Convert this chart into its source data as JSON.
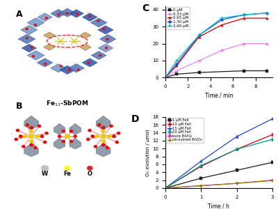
{
  "panel_C": {
    "xlabel": "Time / min",
    "xlim": [
      0,
      9.5
    ],
    "ylim": [
      0,
      42
    ],
    "series": [
      {
        "label": "0 μM",
        "color": "#1a1a1a",
        "marker": "s",
        "x": [
          0,
          1,
          3,
          7,
          9
        ],
        "y": [
          0,
          2,
          3,
          4,
          4
        ]
      },
      {
        "label": "0.33 μM",
        "color": "#ee82ee",
        "marker": "o",
        "x": [
          0,
          1,
          3,
          5,
          7,
          9
        ],
        "y": [
          0,
          4,
          10,
          16,
          20,
          20
        ]
      },
      {
        "label": "0.65 μM",
        "color": "#cc0000",
        "marker": "^",
        "x": [
          0,
          1,
          3,
          5,
          7,
          9
        ],
        "y": [
          0,
          7,
          24,
          31,
          35,
          35
        ]
      },
      {
        "label": "1.30 μM",
        "color": "#2244cc",
        "marker": "D",
        "x": [
          0,
          1,
          3,
          5,
          7,
          9
        ],
        "y": [
          0,
          8,
          25,
          34,
          37,
          38
        ]
      },
      {
        "label": "2.60 μM",
        "color": "#00bbcc",
        "marker": "v",
        "x": [
          0,
          1,
          3,
          5,
          7,
          9
        ],
        "y": [
          0,
          10,
          25,
          35,
          37,
          38
        ]
      }
    ],
    "yticks": [
      0,
      10,
      20,
      30,
      40
    ],
    "xticks": [
      0,
      2,
      4,
      6,
      8
    ]
  },
  "panel_D": {
    "xlabel": "Time / h",
    "ylabel": "O₂ evolution / μmol",
    "xlim": [
      0,
      3
    ],
    "ylim": [
      0,
      18
    ],
    "series": [
      {
        "label": "1 μM FeII",
        "color": "#1a1a1a",
        "marker": "s",
        "x": [
          0,
          1,
          2,
          3
        ],
        "y": [
          0,
          2.5,
          4.5,
          6.5
        ],
        "yerr": [
          0,
          0.25,
          0.3,
          0.3
        ]
      },
      {
        "label": "10 μM FeII",
        "color": "#dd0000",
        "marker": "o",
        "x": [
          0,
          1,
          2,
          3
        ],
        "y": [
          0,
          5.5,
          9.8,
          13.5
        ],
        "yerr": [
          0,
          0.2,
          0.3,
          0.4
        ]
      },
      {
        "label": "15 μM FeII",
        "color": "#2244cc",
        "marker": "^",
        "x": [
          0,
          1,
          2,
          3
        ],
        "y": [
          0,
          6.8,
          13.0,
          17.5
        ],
        "yerr": [
          0,
          0.3,
          0.4,
          0.3
        ]
      },
      {
        "label": "20 μM FeII",
        "color": "#009988",
        "marker": "D",
        "x": [
          0,
          1,
          2,
          3
        ],
        "y": [
          0,
          5.7,
          9.8,
          12.3
        ],
        "yerr": [
          0,
          0.2,
          0.3,
          0.4
        ]
      },
      {
        "label": "bare BiVO₄",
        "color": "#ee00ee",
        "marker": "v",
        "x": [
          0,
          1,
          2,
          3
        ],
        "y": [
          0,
          0.6,
          1.2,
          2.0
        ],
        "yerr": [
          0,
          0.1,
          0.1,
          0.2
        ]
      },
      {
        "label": "recovered BiVO₄",
        "color": "#888800",
        "marker": "p",
        "x": [
          0,
          1,
          2,
          3
        ],
        "y": [
          0,
          0.6,
          1.2,
          1.9
        ],
        "yerr": [
          0,
          0.1,
          0.1,
          0.2
        ]
      }
    ],
    "yticks": [
      0,
      2,
      4,
      6,
      8,
      10,
      12,
      14,
      16,
      18
    ],
    "xticks": [
      0,
      1,
      2,
      3
    ]
  },
  "left_panel": {
    "label_A": "A",
    "label_B": "B",
    "title": "Fe$_{11}$-SbPOM",
    "legend_items": [
      {
        "label": "W",
        "color": "#c0c0c0"
      },
      {
        "label": "Fe",
        "color": "#ffff00"
      },
      {
        "label": "O",
        "color": "#dd2222"
      }
    ]
  }
}
